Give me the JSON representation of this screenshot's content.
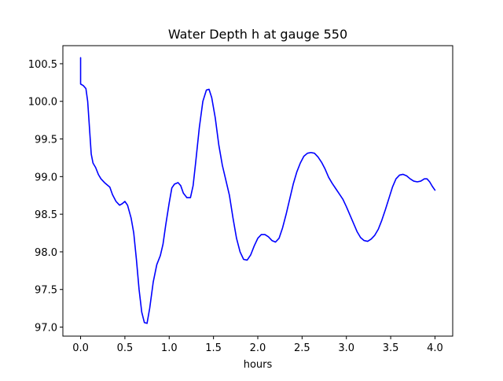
{
  "chart_data": {
    "type": "line",
    "title": "Water Depth h at gauge 550",
    "xlabel": "hours",
    "ylabel": "",
    "xlim": [
      -0.2,
      4.2
    ],
    "ylim": [
      96.88,
      100.74
    ],
    "xticks": [
      0.0,
      0.5,
      1.0,
      1.5,
      2.0,
      2.5,
      3.0,
      3.5,
      4.0
    ],
    "xtick_labels": [
      "0.0",
      "0.5",
      "1.0",
      "1.5",
      "2.0",
      "2.5",
      "3.0",
      "3.5",
      "4.0"
    ],
    "yticks": [
      97.0,
      97.5,
      98.0,
      98.5,
      99.0,
      99.5,
      100.0,
      100.5
    ],
    "ytick_labels": [
      "97.0",
      "97.5",
      "98.0",
      "98.5",
      "99.0",
      "99.5",
      "100.0",
      "100.5"
    ],
    "grid": false,
    "series": [
      {
        "color": "#0000ff",
        "points": [
          [
            0.0,
            100.58
          ],
          [
            0.0,
            100.23
          ],
          [
            0.03,
            100.21
          ],
          [
            0.06,
            100.17
          ],
          [
            0.08,
            100.0
          ],
          [
            0.1,
            99.65
          ],
          [
            0.12,
            99.3
          ],
          [
            0.14,
            99.18
          ],
          [
            0.17,
            99.12
          ],
          [
            0.2,
            99.03
          ],
          [
            0.23,
            98.97
          ],
          [
            0.27,
            98.92
          ],
          [
            0.3,
            98.89
          ],
          [
            0.33,
            98.86
          ],
          [
            0.36,
            98.76
          ],
          [
            0.4,
            98.67
          ],
          [
            0.44,
            98.62
          ],
          [
            0.47,
            98.64
          ],
          [
            0.5,
            98.67
          ],
          [
            0.53,
            98.62
          ],
          [
            0.57,
            98.45
          ],
          [
            0.6,
            98.25
          ],
          [
            0.63,
            97.9
          ],
          [
            0.66,
            97.5
          ],
          [
            0.69,
            97.2
          ],
          [
            0.72,
            97.06
          ],
          [
            0.75,
            97.05
          ],
          [
            0.78,
            97.25
          ],
          [
            0.82,
            97.6
          ],
          [
            0.86,
            97.83
          ],
          [
            0.9,
            97.95
          ],
          [
            0.93,
            98.1
          ],
          [
            0.96,
            98.35
          ],
          [
            1.0,
            98.65
          ],
          [
            1.03,
            98.85
          ],
          [
            1.06,
            98.9
          ],
          [
            1.1,
            98.92
          ],
          [
            1.13,
            98.88
          ],
          [
            1.16,
            98.78
          ],
          [
            1.2,
            98.72
          ],
          [
            1.24,
            98.72
          ],
          [
            1.27,
            98.88
          ],
          [
            1.3,
            99.2
          ],
          [
            1.34,
            99.65
          ],
          [
            1.38,
            100.0
          ],
          [
            1.42,
            100.15
          ],
          [
            1.45,
            100.16
          ],
          [
            1.48,
            100.05
          ],
          [
            1.52,
            99.78
          ],
          [
            1.56,
            99.42
          ],
          [
            1.6,
            99.15
          ],
          [
            1.64,
            98.95
          ],
          [
            1.68,
            98.75
          ],
          [
            1.72,
            98.45
          ],
          [
            1.76,
            98.18
          ],
          [
            1.8,
            98.0
          ],
          [
            1.84,
            97.9
          ],
          [
            1.88,
            97.89
          ],
          [
            1.92,
            97.96
          ],
          [
            1.96,
            98.08
          ],
          [
            2.0,
            98.18
          ],
          [
            2.04,
            98.23
          ],
          [
            2.08,
            98.23
          ],
          [
            2.12,
            98.2
          ],
          [
            2.16,
            98.15
          ],
          [
            2.2,
            98.13
          ],
          [
            2.24,
            98.18
          ],
          [
            2.28,
            98.32
          ],
          [
            2.32,
            98.5
          ],
          [
            2.36,
            98.7
          ],
          [
            2.4,
            98.9
          ],
          [
            2.44,
            99.06
          ],
          [
            2.48,
            99.18
          ],
          [
            2.52,
            99.27
          ],
          [
            2.56,
            99.31
          ],
          [
            2.6,
            99.32
          ],
          [
            2.64,
            99.31
          ],
          [
            2.68,
            99.26
          ],
          [
            2.72,
            99.19
          ],
          [
            2.76,
            99.1
          ],
          [
            2.8,
            98.99
          ],
          [
            2.84,
            98.91
          ],
          [
            2.88,
            98.84
          ],
          [
            2.92,
            98.77
          ],
          [
            2.96,
            98.7
          ],
          [
            3.0,
            98.6
          ],
          [
            3.04,
            98.49
          ],
          [
            3.08,
            98.38
          ],
          [
            3.12,
            98.27
          ],
          [
            3.16,
            98.19
          ],
          [
            3.2,
            98.15
          ],
          [
            3.24,
            98.14
          ],
          [
            3.28,
            98.17
          ],
          [
            3.32,
            98.22
          ],
          [
            3.36,
            98.3
          ],
          [
            3.4,
            98.42
          ],
          [
            3.44,
            98.56
          ],
          [
            3.48,
            98.71
          ],
          [
            3.52,
            98.86
          ],
          [
            3.56,
            98.97
          ],
          [
            3.6,
            99.02
          ],
          [
            3.64,
            99.03
          ],
          [
            3.68,
            99.01
          ],
          [
            3.72,
            98.97
          ],
          [
            3.76,
            98.94
          ],
          [
            3.8,
            98.93
          ],
          [
            3.84,
            98.94
          ],
          [
            3.88,
            98.97
          ],
          [
            3.91,
            98.97
          ],
          [
            3.94,
            98.93
          ],
          [
            3.97,
            98.87
          ],
          [
            4.0,
            98.82
          ]
        ]
      }
    ]
  }
}
